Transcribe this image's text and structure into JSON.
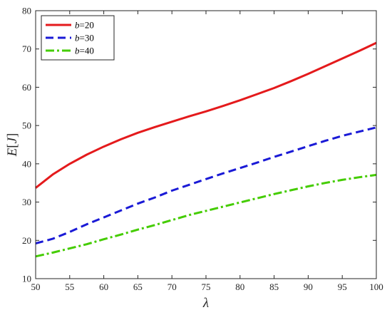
{
  "chart_data": {
    "type": "line",
    "title": "",
    "xlabel": "λ",
    "ylabel_parts": {
      "var": "E",
      "open": "[",
      "sub": "J",
      "close": "]"
    },
    "xlim": [
      50,
      100
    ],
    "ylim": [
      10,
      80
    ],
    "xticks": [
      50,
      55,
      60,
      65,
      70,
      75,
      80,
      85,
      90,
      95,
      100
    ],
    "yticks": [
      10,
      20,
      30,
      40,
      50,
      60,
      70,
      80
    ],
    "grid": false,
    "legend_position": "top-left",
    "series": [
      {
        "name": "b=20",
        "legend_var": "b",
        "legend_value": "=20",
        "color": "#e41a1c",
        "style": "solid",
        "x": [
          50,
          52.5,
          55,
          57.5,
          60,
          62.5,
          65,
          67.5,
          70,
          72.5,
          75,
          77.5,
          80,
          82.5,
          85,
          87.5,
          90,
          92.5,
          95,
          97.5,
          100
        ],
        "y": [
          33.7,
          37.2,
          40.0,
          42.4,
          44.5,
          46.4,
          48.1,
          49.6,
          51.0,
          52.4,
          53.7,
          55.1,
          56.6,
          58.2,
          59.8,
          61.6,
          63.5,
          65.5,
          67.5,
          69.5,
          71.6
        ]
      },
      {
        "name": "b=30",
        "legend_var": "b",
        "legend_value": "=30",
        "color": "#1a1ad6",
        "style": "dashed",
        "x": [
          50,
          52.5,
          55,
          57.5,
          60,
          62.5,
          65,
          67.5,
          70,
          72.5,
          75,
          77.5,
          80,
          82.5,
          85,
          87.5,
          90,
          92.5,
          95,
          97.5,
          100
        ],
        "y": [
          19.2,
          20.4,
          22.2,
          24.2,
          26.0,
          27.8,
          29.6,
          31.2,
          33.0,
          34.5,
          36.0,
          37.5,
          38.9,
          40.3,
          41.8,
          43.2,
          44.6,
          46.0,
          47.3,
          48.4,
          49.5
        ]
      },
      {
        "name": "b=40",
        "legend_var": "b",
        "legend_value": "=40",
        "color": "#44cc00",
        "style": "dashdot",
        "x": [
          50,
          52.5,
          55,
          57.5,
          60,
          62.5,
          65,
          67.5,
          70,
          72.5,
          75,
          77.5,
          80,
          82.5,
          85,
          87.5,
          90,
          92.5,
          95,
          97.5,
          100
        ],
        "y": [
          15.8,
          16.8,
          17.9,
          19.0,
          20.3,
          21.5,
          22.8,
          24.0,
          25.3,
          26.6,
          27.7,
          28.8,
          29.9,
          31.0,
          32.1,
          33.1,
          34.1,
          35.0,
          35.8,
          36.5,
          37.1
        ]
      }
    ]
  }
}
